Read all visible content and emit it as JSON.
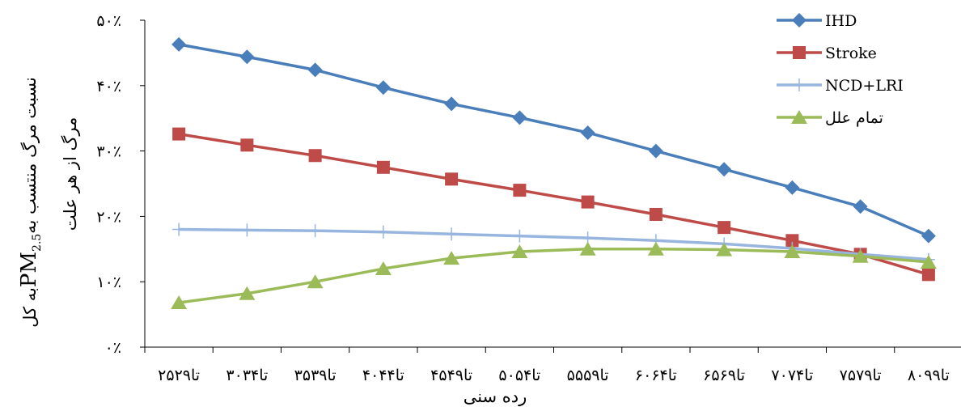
{
  "chart_data": {
    "type": "line",
    "xlabel": "رده سنی",
    "ylabel_line1": "نسبت مرگ منتسب به PM2.5 به کل",
    "ylabel_line2": "مرگ از هر علت",
    "ylabel_parts": {
      "prefix": "نسبت مرگ منتسب به ",
      "pm": "PM",
      "sub": "2.5",
      "suffix": " به کل"
    },
    "ylim": [
      0,
      50
    ],
    "yticks": [
      {
        "value": 0,
        "label": "۰٪"
      },
      {
        "value": 10,
        "label": "۱۰٪"
      },
      {
        "value": 20,
        "label": "۲۰٪"
      },
      {
        "value": 30,
        "label": "۳۰٪"
      },
      {
        "value": 40,
        "label": "۴۰٪"
      },
      {
        "value": 50,
        "label": "۵۰٪"
      }
    ],
    "categories": [
      "۲۵تا۲۹",
      "۳۰تا۳۴",
      "۳۵تا۳۹",
      "۴۰تا۴۴",
      "۴۵تا۴۹",
      "۵۰تا۵۴",
      "۵۵تا۵۹",
      "۶۰تا۶۴",
      "۶۵تا۶۹",
      "۷۰تا۷۴",
      "۷۵تا۷۹",
      "۸۰تا۹۹"
    ],
    "legend_position": "top-right",
    "series": [
      {
        "name": "IHD",
        "color": "#4A7EBB",
        "marker": "diamond",
        "values": [
          46.3,
          44.4,
          42.4,
          39.7,
          37.2,
          35.1,
          32.8,
          30.0,
          27.2,
          24.4,
          21.5,
          17.0
        ]
      },
      {
        "name": "Stroke",
        "color": "#BE4B48",
        "marker": "square",
        "values": [
          32.6,
          30.9,
          29.3,
          27.5,
          25.7,
          24.0,
          22.2,
          20.3,
          18.3,
          16.3,
          14.2,
          11.1
        ]
      },
      {
        "name": "NCD+LRI",
        "color": "#98B5E0",
        "marker": "plus",
        "values": [
          18.0,
          17.9,
          17.8,
          17.6,
          17.3,
          17.0,
          16.7,
          16.3,
          15.8,
          15.1,
          14.2,
          13.4
        ]
      },
      {
        "name": "تمام علل",
        "color": "#9BBB59",
        "marker": "triangle",
        "values": [
          6.8,
          8.2,
          10.0,
          12.0,
          13.6,
          14.6,
          15.0,
          15.0,
          14.9,
          14.6,
          13.9,
          13.0
        ]
      }
    ]
  }
}
